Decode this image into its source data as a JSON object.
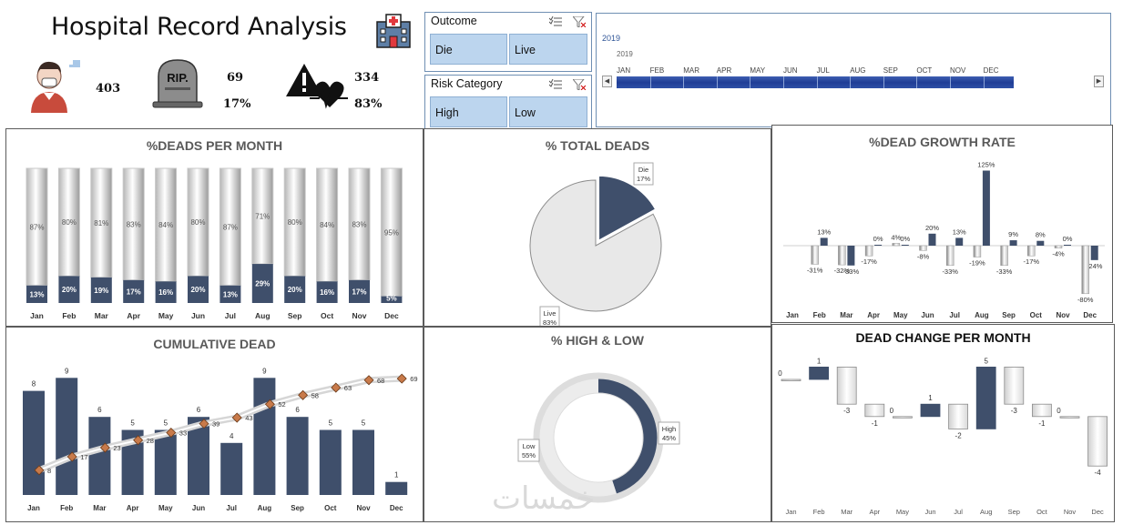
{
  "header": {
    "title": "Hospital Record Analysis",
    "total_patients": "403",
    "dead_count": "69",
    "dead_pct": "17%",
    "live_count": "334",
    "live_pct": "83%",
    "rip_text": "RIP."
  },
  "slicers": {
    "outcome": {
      "title": "Outcome",
      "options": [
        "Die",
        "Live"
      ]
    },
    "risk": {
      "title": "Risk Category",
      "options": [
        "High",
        "Low"
      ]
    }
  },
  "timeline": {
    "selected_label": "2019",
    "year": "2019",
    "months": [
      "JAN",
      "FEB",
      "MAR",
      "APR",
      "MAY",
      "JUN",
      "JUL",
      "AUG",
      "SEP",
      "OCT",
      "NOV",
      "DEC"
    ]
  },
  "colors": {
    "navy": "#3f4f6b",
    "light": "#e8e8e8",
    "gray": "#a6a6a6"
  },
  "panels": {
    "deads_per_month": "%DEADS PER MONTH",
    "total_deads": "% TOTAL DEADS",
    "growth_rate": "%DEAD GROWTH RATE",
    "cumulative": "CUMULATIVE DEAD",
    "high_low": "% HIGH & LOW",
    "change_per_month": "DEAD CHANGE PER MONTH"
  },
  "watermark": "خمسات",
  "chart_data": [
    {
      "id": "deads_per_month",
      "type": "bar",
      "stacked": true,
      "categories": [
        "Jan",
        "Feb",
        "Mar",
        "Apr",
        "May",
        "Jun",
        "Jul",
        "Aug",
        "Sep",
        "Oct",
        "Nov",
        "Dec"
      ],
      "series": [
        {
          "values": [
            13,
            20,
            19,
            17,
            16,
            20,
            13,
            29,
            20,
            16,
            17,
            5
          ],
          "labels": [
            "13%",
            "20%",
            "19%",
            "17%",
            "16%",
            "20%",
            "13%",
            "29%",
            "20%",
            "16%",
            "17%",
            "5%"
          ]
        },
        {
          "values": [
            87,
            80,
            81,
            83,
            84,
            80,
            87,
            71,
            80,
            84,
            83,
            95
          ],
          "labels": [
            "87%",
            "80%",
            "81%",
            "83%",
            "84%",
            "80%",
            "87%",
            "71%",
            "80%",
            "84%",
            "83%",
            "95%"
          ]
        }
      ],
      "ylim": [
        0,
        100
      ]
    },
    {
      "id": "total_deads",
      "type": "pie",
      "slices": [
        {
          "name": "Die",
          "value": 17,
          "label": "17%"
        },
        {
          "name": "Live",
          "value": 83,
          "label": "83%"
        }
      ]
    },
    {
      "id": "growth_rate",
      "type": "bar",
      "categories": [
        "Jan",
        "Feb",
        "Mar",
        "Apr",
        "May",
        "Jun",
        "Jul",
        "Aug",
        "Sep",
        "Oct",
        "Nov",
        "Dec"
      ],
      "series": [
        {
          "values": [
            null,
            13,
            -33,
            0,
            0,
            20,
            13,
            125,
            9,
            8,
            0,
            -24
          ],
          "labels": [
            "",
            "13%",
            "-33%",
            "0%",
            "0%",
            "20%",
            "13%",
            "125%",
            "9%",
            "8%",
            "0%",
            "-24%"
          ]
        },
        {
          "values": [
            null,
            -31,
            -32,
            -17,
            4,
            -8,
            -33,
            -19,
            -33,
            -17,
            -4,
            -80
          ],
          "labels": [
            "",
            "-31%",
            "-32%",
            "-17%",
            "4%",
            "-8%",
            "-33%",
            "-19%",
            "-33%",
            "-17%",
            "-4%",
            "-80%"
          ]
        }
      ]
    },
    {
      "id": "cumulative",
      "type": "bar",
      "categories": [
        "Jan",
        "Feb",
        "Mar",
        "Apr",
        "May",
        "Jun",
        "Jul",
        "Aug",
        "Sep",
        "Oct",
        "Nov",
        "Dec"
      ],
      "series": [
        {
          "values": [
            8,
            9,
            6,
            5,
            5,
            6,
            4,
            9,
            6,
            5,
            5,
            1
          ]
        },
        {
          "type": "line",
          "values": [
            8,
            17,
            23,
            28,
            33,
            39,
            43,
            52,
            58,
            63,
            68,
            69
          ]
        }
      ]
    },
    {
      "id": "high_low",
      "type": "pie",
      "donut": true,
      "slices": [
        {
          "name": "High",
          "value": 45,
          "label": "45%"
        },
        {
          "name": "Low",
          "value": 55,
          "label": "55%"
        }
      ]
    },
    {
      "id": "change_per_month",
      "type": "bar",
      "categories": [
        "Jan",
        "Feb",
        "Mar",
        "Apr",
        "May",
        "Jun",
        "Jul",
        "Aug",
        "Sep",
        "Oct",
        "Nov",
        "Dec"
      ],
      "values": [
        0,
        1,
        -3,
        -1,
        0,
        1,
        -2,
        5,
        -3,
        -1,
        0,
        -4
      ]
    }
  ]
}
